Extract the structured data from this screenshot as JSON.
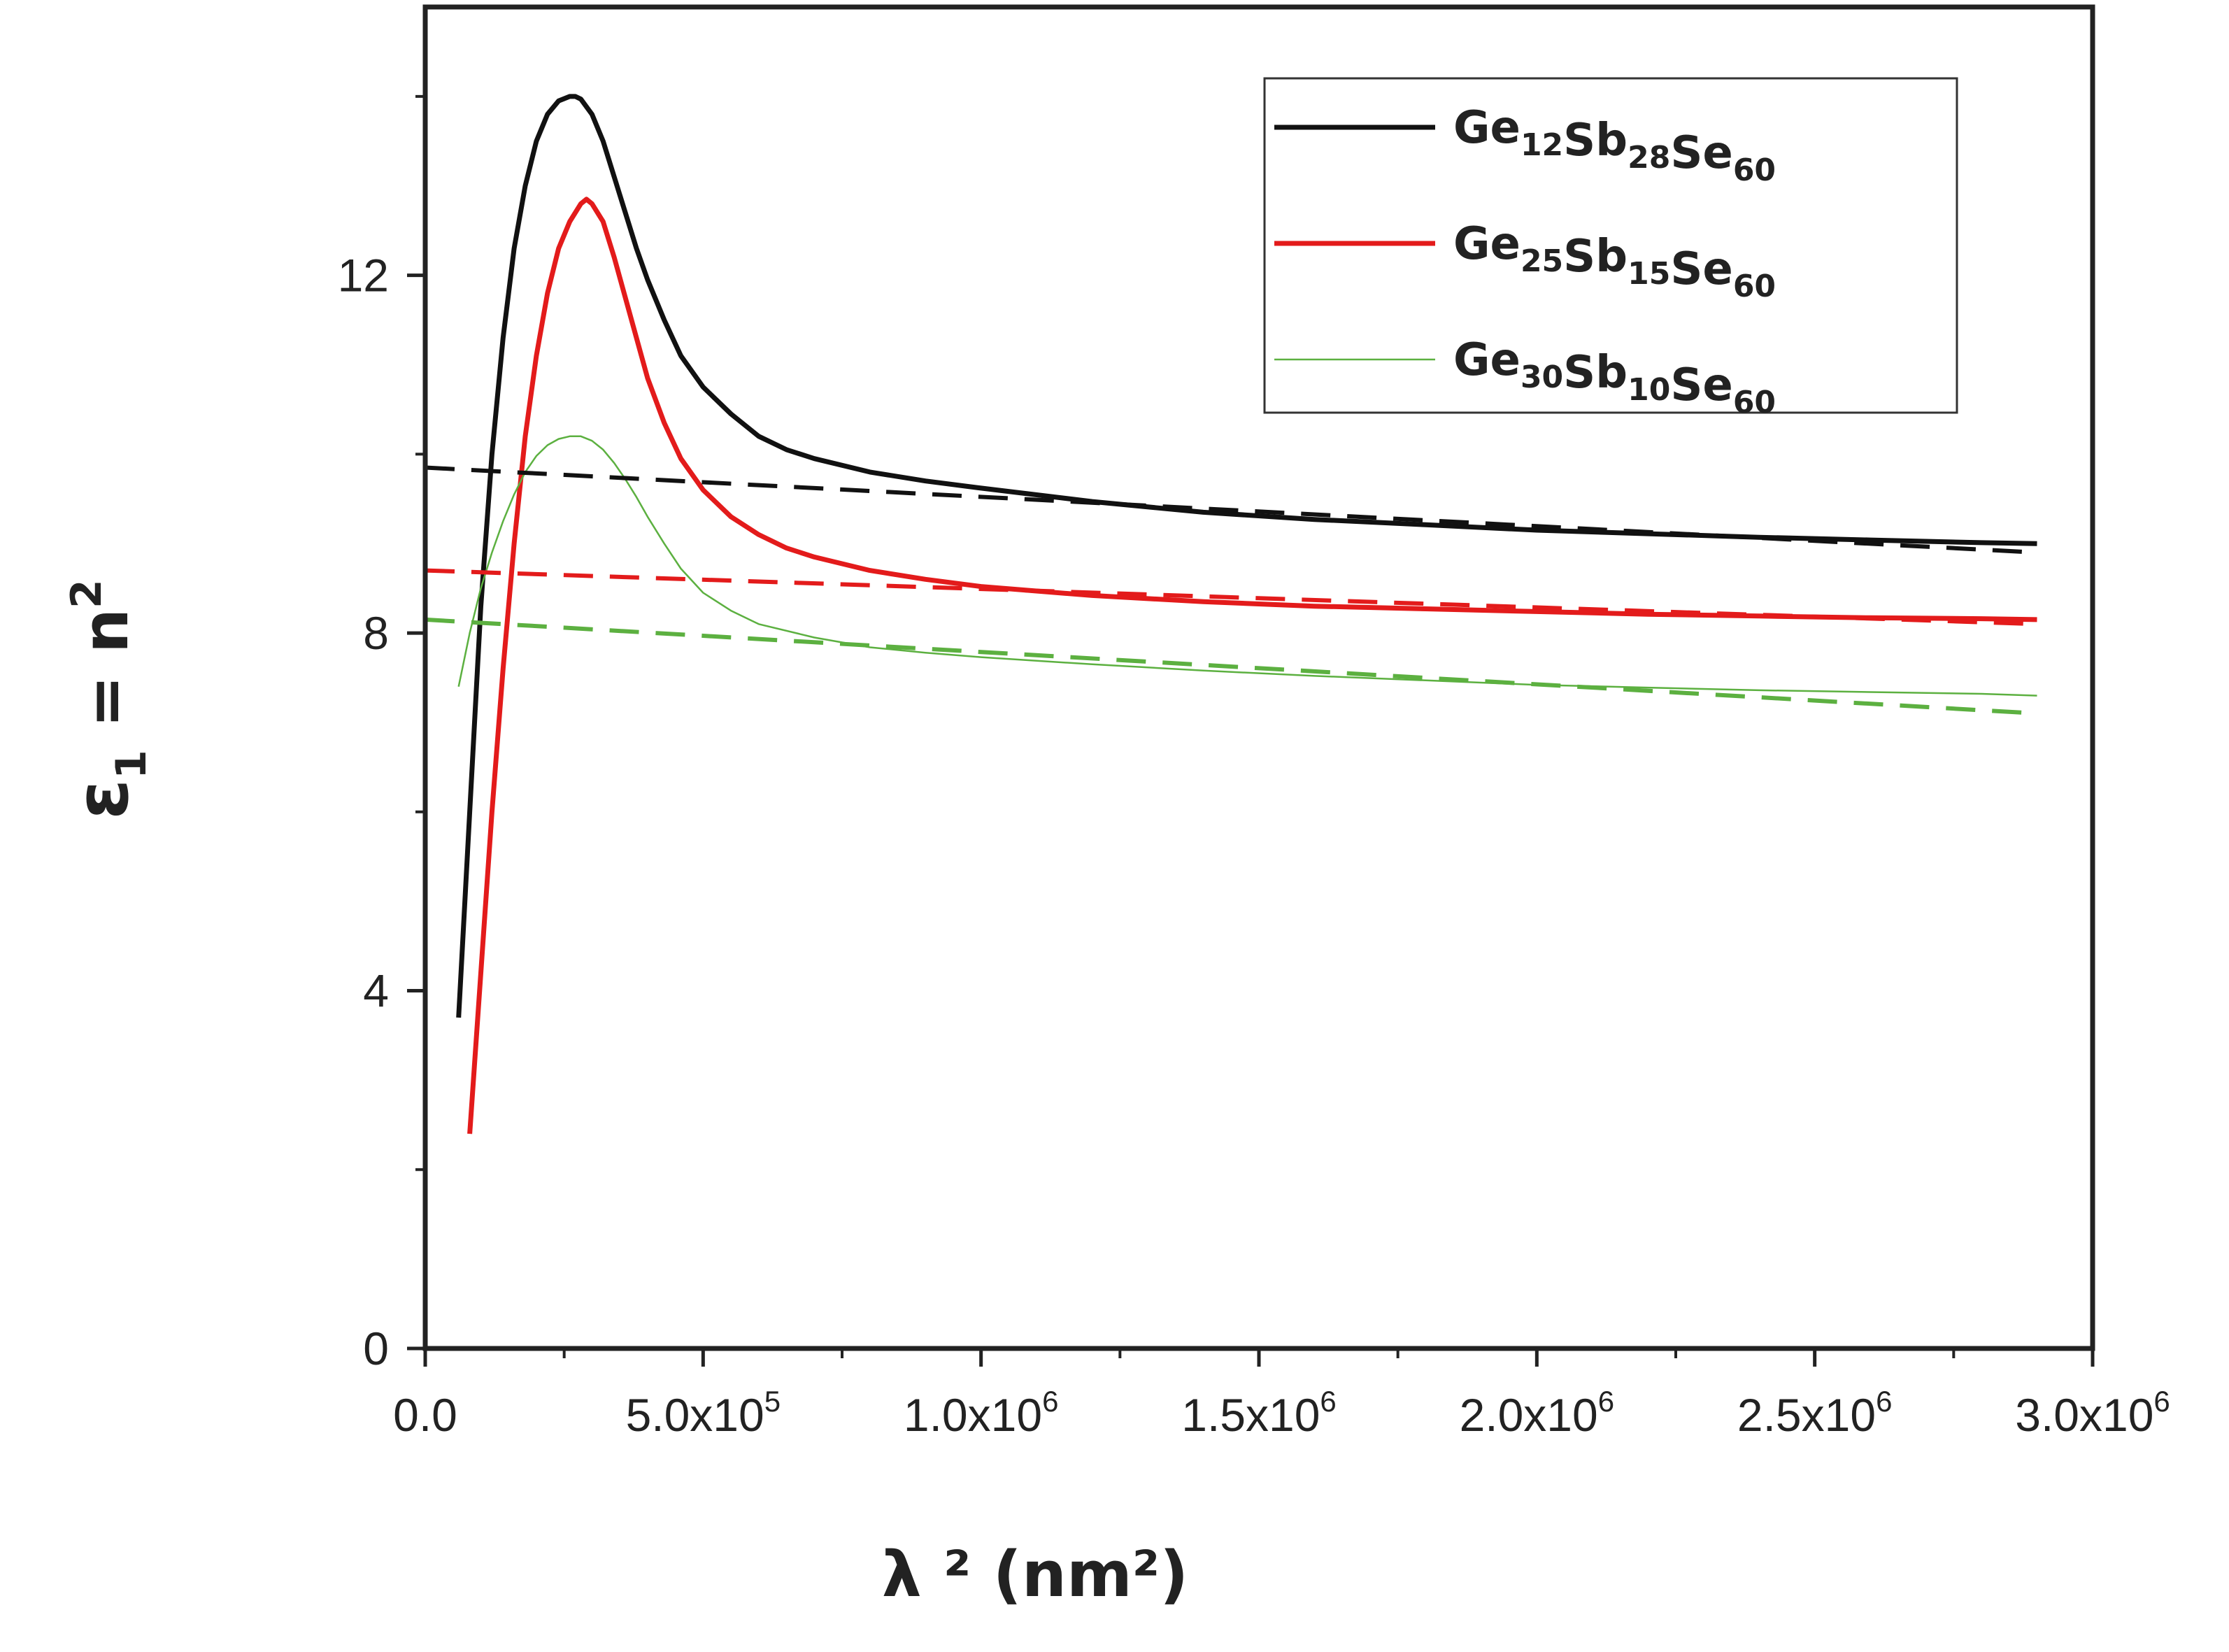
{
  "chart_data": {
    "type": "line",
    "title": "",
    "xlabel": "λ ² (nm²)",
    "ylabel": "ε1 = n2",
    "xlim": [
      0,
      3000000
    ],
    "ylim": [
      0,
      15
    ],
    "x_ticks": [
      {
        "value": 0,
        "label": "0.0"
      },
      {
        "value": 500000,
        "label": "5.0x10",
        "exp": "5"
      },
      {
        "value": 1000000,
        "label": "1.0x10",
        "exp": "6"
      },
      {
        "value": 1500000,
        "label": "1.5x10",
        "exp": "6"
      },
      {
        "value": 2000000,
        "label": "2.0x10",
        "exp": "6"
      },
      {
        "value": 2500000,
        "label": "2.5x10",
        "exp": "6"
      },
      {
        "value": 3000000,
        "label": "3.0x10",
        "exp": "6"
      }
    ],
    "y_ticks": [
      {
        "value": 0,
        "label": "0"
      },
      {
        "value": 4,
        "label": "4"
      },
      {
        "value": 8,
        "label": "8"
      },
      {
        "value": 12,
        "label": "12"
      }
    ],
    "grid": false,
    "legend_position": "top-right",
    "series": [
      {
        "name": "Ge12Sb28Se60",
        "legend_parts": [
          [
            "Ge",
            "12"
          ],
          [
            "Sb",
            "28"
          ],
          [
            "Se",
            "60"
          ]
        ],
        "color": "#111111",
        "style": "solid",
        "x": [
          60000,
          80000,
          100000,
          120000,
          140000,
          160000,
          180000,
          200000,
          220000,
          240000,
          260000,
          270000,
          280000,
          300000,
          320000,
          340000,
          360000,
          380000,
          400000,
          430000,
          460000,
          500000,
          550000,
          600000,
          650000,
          700000,
          800000,
          900000,
          1000000,
          1200000,
          1400000,
          1600000,
          1800000,
          2000000,
          2200000,
          2400000,
          2600000,
          2800000,
          2900000
        ],
        "values": [
          3.7,
          6.0,
          8.3,
          10.0,
          11.3,
          12.3,
          13.0,
          13.5,
          13.8,
          13.95,
          14.0,
          14.0,
          13.97,
          13.8,
          13.5,
          13.1,
          12.7,
          12.3,
          11.95,
          11.5,
          11.1,
          10.75,
          10.45,
          10.2,
          10.05,
          9.95,
          9.8,
          9.7,
          9.62,
          9.47,
          9.35,
          9.27,
          9.21,
          9.15,
          9.11,
          9.07,
          9.04,
          9.01,
          9.0
        ]
      },
      {
        "name": "Ge25Sb15Se60",
        "legend_parts": [
          [
            "Ge",
            "25"
          ],
          [
            "Sb",
            "15"
          ],
          [
            "Se",
            "60"
          ]
        ],
        "color": "#e31b1b",
        "style": "solid",
        "x": [
          80000,
          100000,
          120000,
          140000,
          160000,
          180000,
          200000,
          220000,
          240000,
          260000,
          280000,
          290000,
          300000,
          320000,
          340000,
          360000,
          380000,
          400000,
          430000,
          460000,
          500000,
          550000,
          600000,
          650000,
          700000,
          800000,
          900000,
          1000000,
          1200000,
          1400000,
          1600000,
          1800000,
          2000000,
          2200000,
          2400000,
          2600000,
          2800000,
          2900000
        ],
        "values": [
          2.4,
          4.2,
          6.0,
          7.6,
          9.0,
          10.2,
          11.1,
          11.8,
          12.3,
          12.6,
          12.8,
          12.85,
          12.8,
          12.6,
          12.2,
          11.75,
          11.3,
          10.85,
          10.35,
          9.95,
          9.6,
          9.3,
          9.1,
          8.95,
          8.85,
          8.7,
          8.6,
          8.52,
          8.42,
          8.35,
          8.3,
          8.27,
          8.24,
          8.21,
          8.19,
          8.17,
          8.16,
          8.15
        ]
      },
      {
        "name": "Ge30Sb10Se60",
        "legend_parts": [
          [
            "Ge",
            "30"
          ],
          [
            "Sb",
            "10"
          ],
          [
            "Se",
            "60"
          ]
        ],
        "color": "#5cb040",
        "style": "thin",
        "x": [
          60000,
          80000,
          100000,
          120000,
          140000,
          160000,
          180000,
          200000,
          220000,
          240000,
          260000,
          280000,
          300000,
          320000,
          340000,
          360000,
          380000,
          400000,
          430000,
          460000,
          500000,
          550000,
          600000,
          700000,
          800000,
          900000,
          1000000,
          1200000,
          1400000,
          1600000,
          1800000,
          2000000,
          2200000,
          2400000,
          2600000,
          2800000,
          2900000
        ],
        "values": [
          7.4,
          8.0,
          8.5,
          8.9,
          9.25,
          9.55,
          9.8,
          9.98,
          10.1,
          10.17,
          10.2,
          10.2,
          10.15,
          10.05,
          9.9,
          9.72,
          9.52,
          9.3,
          9.0,
          8.72,
          8.45,
          8.25,
          8.1,
          7.95,
          7.84,
          7.78,
          7.73,
          7.65,
          7.58,
          7.52,
          7.47,
          7.42,
          7.39,
          7.36,
          7.34,
          7.32,
          7.3
        ]
      },
      {
        "name": "",
        "color": "#111111",
        "style": "dashed",
        "x": [
          0,
          2900000
        ],
        "values": [
          9.85,
          8.9
        ]
      },
      {
        "name": "",
        "color": "#e31b1b",
        "style": "dashed",
        "x": [
          0,
          2900000
        ],
        "values": [
          8.7,
          8.1
        ]
      },
      {
        "name": "",
        "color": "#5cb040",
        "style": "dashed",
        "x": [
          0,
          2900000
        ],
        "values": [
          8.15,
          7.1
        ]
      }
    ]
  }
}
